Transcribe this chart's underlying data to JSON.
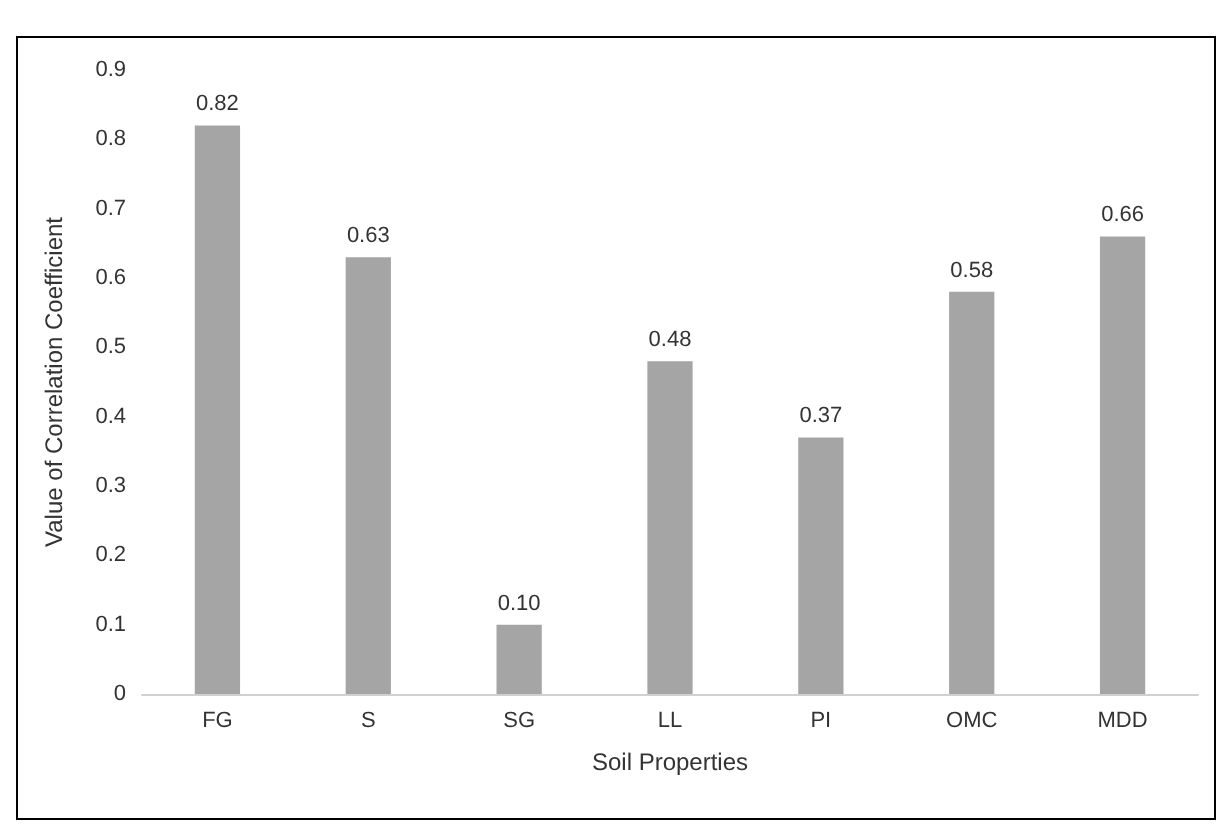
{
  "chart_data": {
    "type": "bar",
    "xlabel": "Soil Properties",
    "ylabel": "Value of Correlation Coefficient",
    "categories": [
      "FG",
      "S",
      "SG",
      "LL",
      "PI",
      "OMC",
      "MDD"
    ],
    "values": [
      0.82,
      0.63,
      0.1,
      0.48,
      0.37,
      0.58,
      0.66
    ],
    "value_labels": [
      "0.82",
      "0.63",
      "0.10",
      "0.48",
      "0.37",
      "0.58",
      "0.66"
    ],
    "color": "#a5a5a5",
    "ylim": [
      0,
      0.9
    ],
    "yticks": [
      0,
      0.1,
      0.2,
      0.3,
      0.4,
      0.5,
      0.6,
      0.7,
      0.8,
      0.9
    ],
    "grid": false
  }
}
